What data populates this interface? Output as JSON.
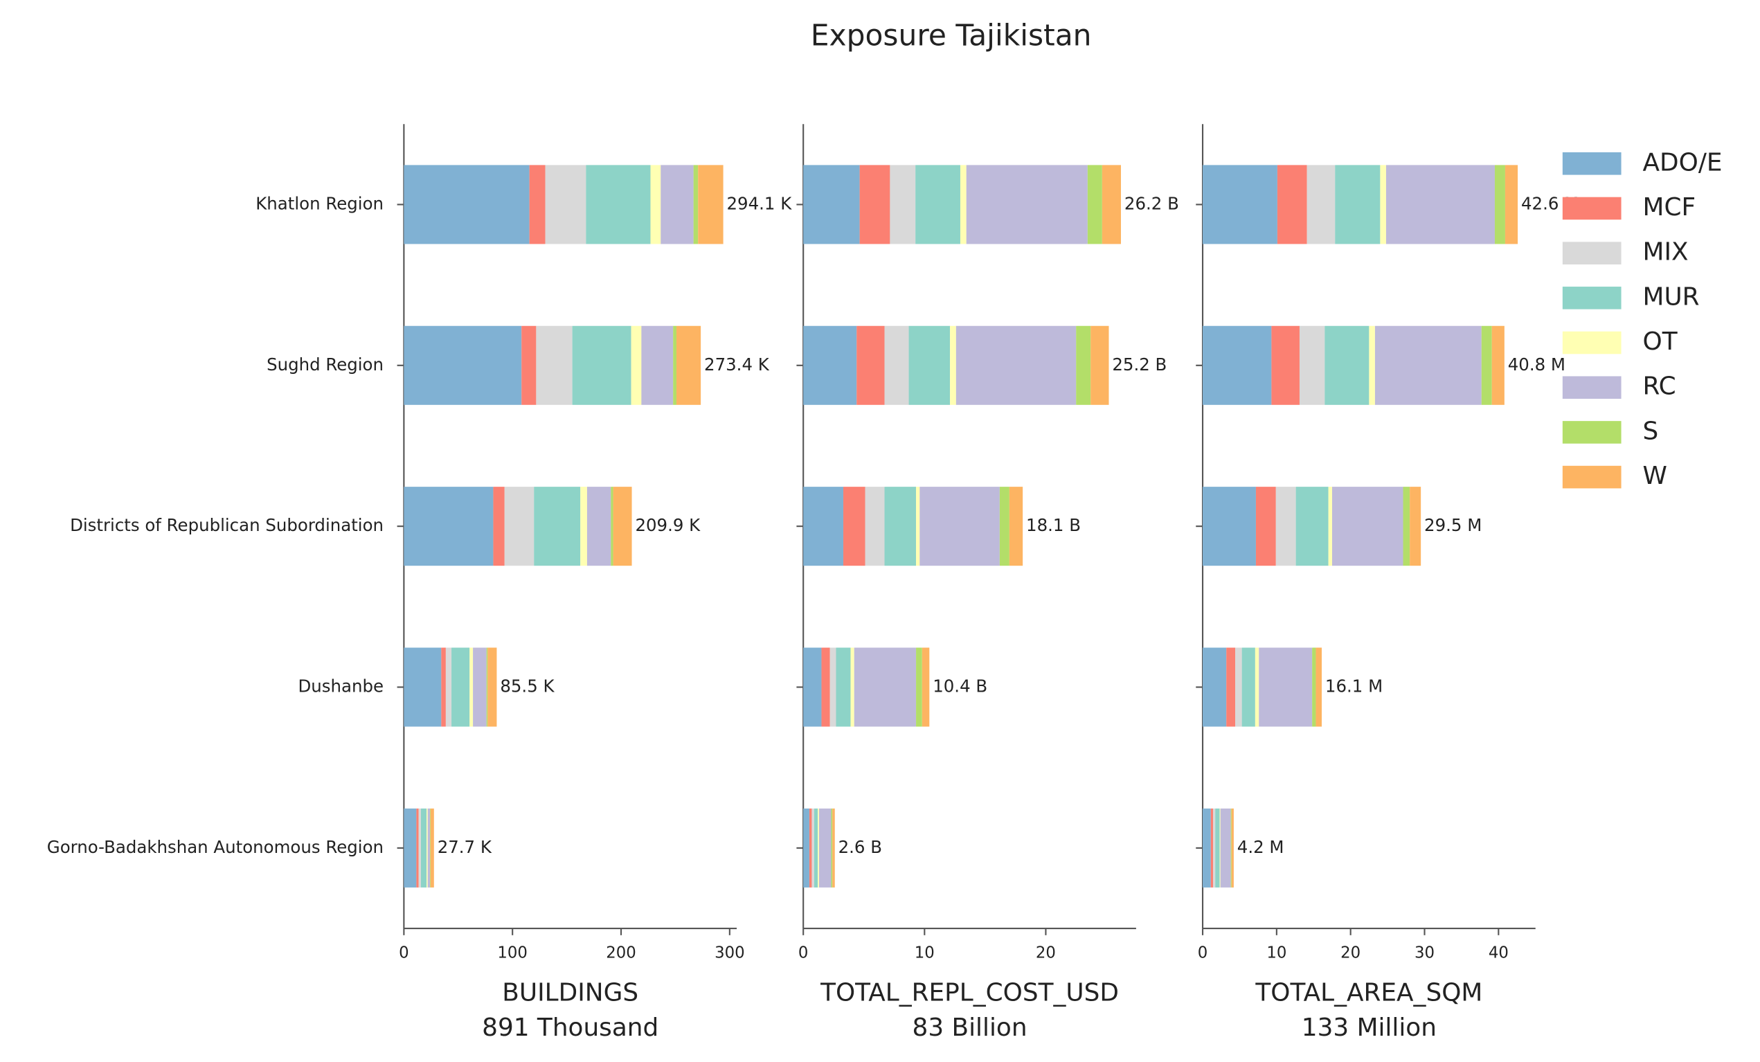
{
  "title": "Exposure Tajikistan",
  "chart_data": [
    {
      "type": "bar",
      "orientation": "horizontal",
      "stacked": true,
      "categories": [
        "Khatlon Region",
        "Sughd Region",
        "Districts of Republican Subordination",
        "Dushanbe",
        "Gorno-Badakhshan Autonomous Region"
      ],
      "series": [
        {
          "color": "#80b1d3",
          "values": [
            115.6,
            108.3,
            82.3,
            34.4,
            11.5
          ]
        },
        {
          "color": "#fb8072",
          "values": [
            14.6,
            13.5,
            10.4,
            4.2,
            2.1
          ]
        },
        {
          "color": "#d9d9d9",
          "values": [
            37.5,
            33.3,
            27.1,
            5.2,
            2.1
          ]
        },
        {
          "color": "#8dd3c7",
          "values": [
            59.4,
            54.2,
            42.7,
            16.7,
            5.2
          ]
        },
        {
          "color": "#ffffb3",
          "values": [
            9.4,
            9.4,
            6.2,
            3.1,
            1.0
          ]
        },
        {
          "color": "#bebada",
          "values": [
            30.2,
            29.2,
            21.9,
            12.5,
            2.1
          ]
        },
        {
          "color": "#b3de69",
          "values": [
            4.2,
            3.1,
            2.1,
            1.0,
            0.5
          ]
        },
        {
          "color": "#fdb462",
          "values": [
            23.2,
            22.4,
            17.2,
            8.4,
            3.2
          ]
        }
      ],
      "totals": {
        "values": [
          294.1,
          273.4,
          209.9,
          85.5,
          27.7
        ],
        "value_labels": [
          "294.1 K",
          "273.4 K",
          "209.9 K",
          "85.5 K",
          "27.7 K"
        ]
      },
      "xlim": [
        0,
        306.5
      ],
      "xticks": [
        0,
        100,
        200,
        300
      ],
      "xlabel": "BUILDINGS",
      "xlabel_total": "891 Thousand"
    },
    {
      "type": "bar",
      "orientation": "horizontal",
      "stacked": true,
      "series": [
        {
          "color": "#80b1d3",
          "values": [
            4.65,
            4.4,
            3.3,
            1.5,
            0.5
          ]
        },
        {
          "color": "#fb8072",
          "values": [
            2.5,
            2.3,
            1.8,
            0.7,
            0.2
          ]
        },
        {
          "color": "#d9d9d9",
          "values": [
            2.1,
            2.0,
            1.6,
            0.5,
            0.2
          ]
        },
        {
          "color": "#8dd3c7",
          "values": [
            3.7,
            3.4,
            2.6,
            1.2,
            0.3
          ]
        },
        {
          "color": "#ffffb3",
          "values": [
            0.5,
            0.5,
            0.3,
            0.3,
            0.1
          ]
        },
        {
          "color": "#bebada",
          "values": [
            10.0,
            9.9,
            6.6,
            5.1,
            1.0
          ]
        },
        {
          "color": "#b3de69",
          "values": [
            1.2,
            1.2,
            0.8,
            0.5,
            0.1
          ]
        },
        {
          "color": "#fdb462",
          "values": [
            1.55,
            1.5,
            1.1,
            0.6,
            0.2
          ]
        }
      ],
      "totals": {
        "values": [
          26.2,
          25.2,
          18.1,
          10.4,
          2.6
        ],
        "value_labels": [
          "26.2 B",
          "25.2 B",
          "18.1 B",
          "10.4 B",
          "2.6 B"
        ]
      },
      "xlim": [
        0,
        27.45
      ],
      "xticks": [
        0,
        10,
        20
      ],
      "xlabel": "TOTAL_REPL_COST_USD",
      "xlabel_total": "83 Billion"
    },
    {
      "type": "bar",
      "orientation": "horizontal",
      "stacked": true,
      "series": [
        {
          "name": "ADO/E",
          "color": "#80b1d3",
          "values": [
            10.1,
            9.3,
            7.2,
            3.2,
            1.1
          ]
        },
        {
          "name": "MCF",
          "color": "#fb8072",
          "values": [
            4.0,
            3.8,
            2.7,
            1.2,
            0.3
          ]
        },
        {
          "name": "MIX",
          "color": "#d9d9d9",
          "values": [
            3.8,
            3.4,
            2.7,
            0.9,
            0.3
          ]
        },
        {
          "name": "MUR",
          "color": "#8dd3c7",
          "values": [
            6.1,
            6.0,
            4.4,
            1.8,
            0.6
          ]
        },
        {
          "name": "OT",
          "color": "#ffffb3",
          "values": [
            0.8,
            0.8,
            0.5,
            0.5,
            0.1
          ]
        },
        {
          "name": "RC",
          "color": "#bebada",
          "values": [
            14.7,
            14.4,
            9.6,
            7.2,
            1.4
          ]
        },
        {
          "name": "S",
          "color": "#b3de69",
          "values": [
            1.4,
            1.4,
            0.9,
            0.5,
            0.1
          ]
        },
        {
          "name": "W",
          "color": "#fdb462",
          "values": [
            1.7,
            1.7,
            1.5,
            0.8,
            0.3
          ]
        }
      ],
      "totals": {
        "values": [
          42.6,
          40.8,
          29.5,
          16.1,
          4.2
        ],
        "value_labels": [
          "42.6 M",
          "40.8 M",
          "29.5 M",
          "16.1 M",
          "4.2 M"
        ]
      },
      "xlim": [
        0,
        45
      ],
      "xticks": [
        0,
        10,
        20,
        30,
        40
      ],
      "xlabel": "TOTAL_AREA_SQM",
      "xlabel_total": "133 Million"
    }
  ]
}
